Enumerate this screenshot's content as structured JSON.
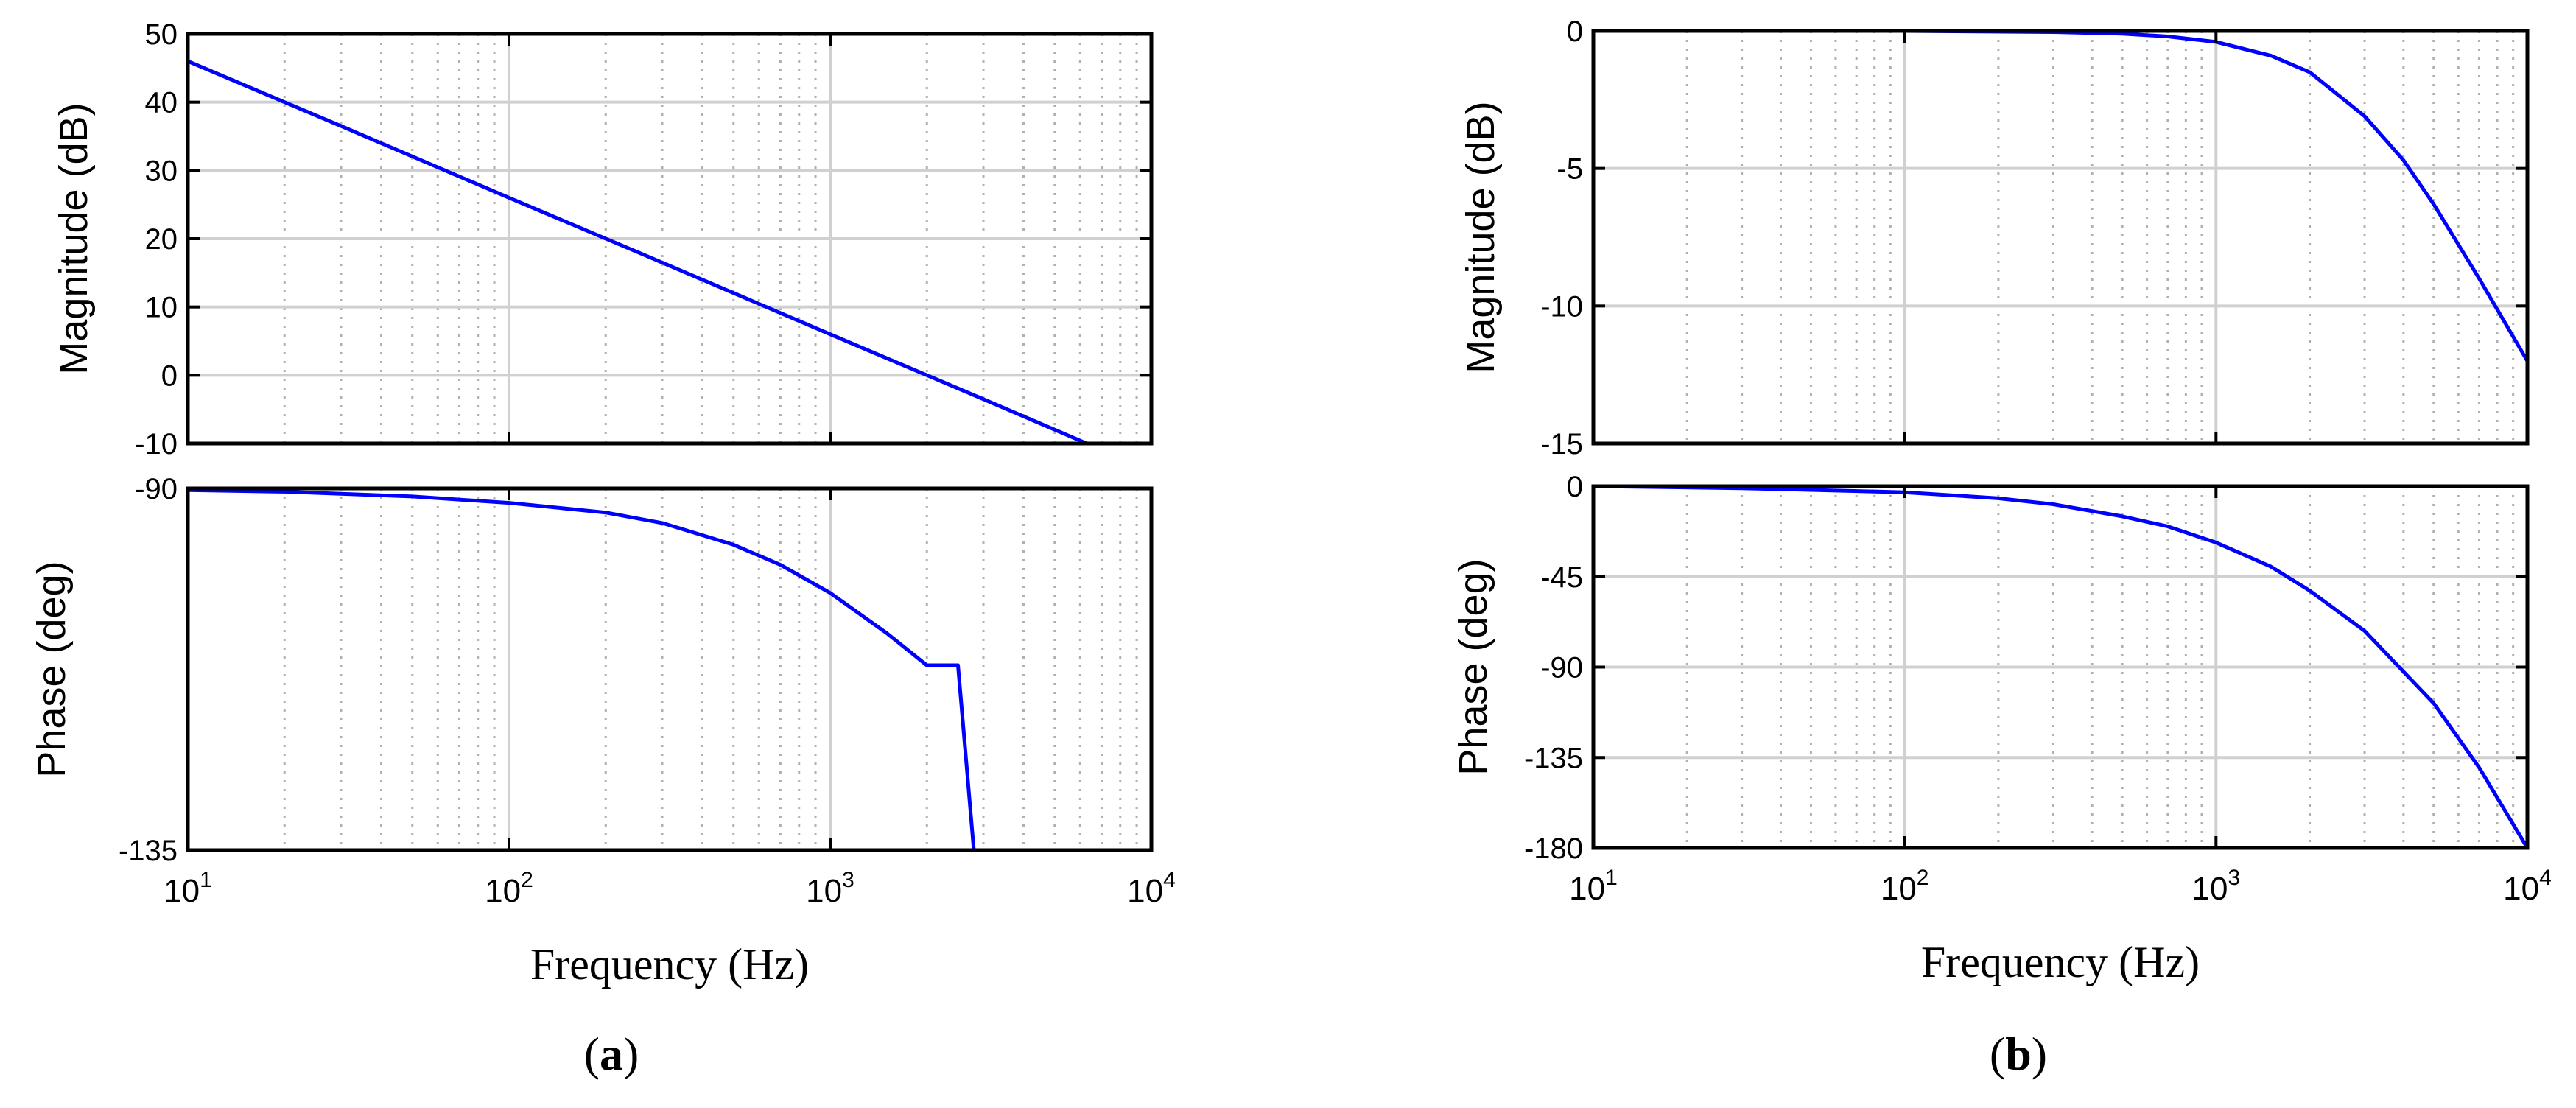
{
  "figure": {
    "captions": [
      {
        "open": "(",
        "letter": "a",
        "close": ")"
      },
      {
        "open": "(",
        "letter": "b",
        "close": ")"
      }
    ],
    "curve_color": "#0000ff",
    "grid_major_color": "#d0d0d0",
    "grid_minor_color": "#b0b0b0"
  },
  "chart_data": [
    {
      "type": "line",
      "subplot": "a-magnitude",
      "xlabel": "",
      "ylabel": "Magnitude (dB)",
      "xscale": "log",
      "xlim": [
        10,
        10000
      ],
      "ylim": [
        -10,
        50
      ],
      "yticks": [
        50,
        40,
        30,
        20,
        10,
        0,
        -10
      ],
      "ytick_labels": [
        "50",
        "40",
        "30",
        "20",
        "10",
        "0",
        "-10"
      ],
      "grid": true,
      "series": [
        {
          "x": [
            10,
            30,
            100,
            300,
            1000,
            3000,
            6300
          ],
          "y": [
            46,
            36.5,
            26,
            16.5,
            6,
            -3.5,
            -10
          ]
        }
      ]
    },
    {
      "type": "line",
      "subplot": "a-phase",
      "xlabel": "Frequency (Hz)",
      "ylabel": "Phase (deg)",
      "xscale": "log",
      "xlim": [
        10,
        10000
      ],
      "ylim": [
        -135,
        -90
      ],
      "yticks": [
        -90,
        -135
      ],
      "ytick_labels": [
        "-90",
        "-135"
      ],
      "xticks": [
        10,
        100,
        1000,
        10000
      ],
      "xtick_labels": [
        {
          "base": "10",
          "exp": "1"
        },
        {
          "base": "10",
          "exp": "2"
        },
        {
          "base": "10",
          "exp": "3"
        },
        {
          "base": "10",
          "exp": "4"
        }
      ],
      "grid": true,
      "series": [
        {
          "x": [
            10,
            20,
            50,
            100,
            200,
            300,
            500,
            700,
            1000,
            1500,
            2000,
            2500,
            2800
          ],
          "y": [
            -90.2,
            -90.4,
            -91,
            -91.8,
            -93,
            -94.3,
            -97,
            -99.5,
            -103,
            -108,
            -112,
            -112,
            -135
          ]
        }
      ]
    },
    {
      "type": "line",
      "subplot": "b-magnitude",
      "xlabel": "",
      "ylabel": "Magnitude (dB)",
      "xscale": "log",
      "xlim": [
        10,
        10000
      ],
      "ylim": [
        -15,
        0
      ],
      "yticks": [
        0,
        -5,
        -10,
        -15
      ],
      "ytick_labels": [
        "0",
        "-5",
        "-10",
        "-15"
      ],
      "grid": true,
      "series": [
        {
          "x": [
            10,
            100,
            300,
            500,
            700,
            1000,
            1500,
            2000,
            3000,
            4000,
            5000,
            7000,
            10000
          ],
          "y": [
            0,
            0,
            -0.04,
            -0.1,
            -0.2,
            -0.4,
            -0.9,
            -1.5,
            -3.1,
            -4.7,
            -6.3,
            -9.0,
            -12.0
          ]
        }
      ]
    },
    {
      "type": "line",
      "subplot": "b-phase",
      "xlabel": "Frequency (Hz)",
      "ylabel": "Phase (deg)",
      "xscale": "log",
      "xlim": [
        10,
        10000
      ],
      "ylim": [
        -180,
        0
      ],
      "yticks": [
        0,
        -45,
        -90,
        -135,
        -180
      ],
      "ytick_labels": [
        "0",
        "-45",
        "-90",
        "-135",
        "-180"
      ],
      "xticks": [
        10,
        100,
        1000,
        10000
      ],
      "xtick_labels": [
        {
          "base": "10",
          "exp": "1"
        },
        {
          "base": "10",
          "exp": "2"
        },
        {
          "base": "10",
          "exp": "3"
        },
        {
          "base": "10",
          "exp": "4"
        }
      ],
      "grid": true,
      "series": [
        {
          "x": [
            10,
            30,
            100,
            200,
            300,
            500,
            700,
            1000,
            1500,
            2000,
            3000,
            5000,
            7000,
            10000
          ],
          "y": [
            0,
            -1,
            -3,
            -6,
            -9,
            -15,
            -20,
            -28,
            -40,
            -52,
            -72,
            -108,
            -140,
            -180
          ]
        }
      ]
    }
  ]
}
